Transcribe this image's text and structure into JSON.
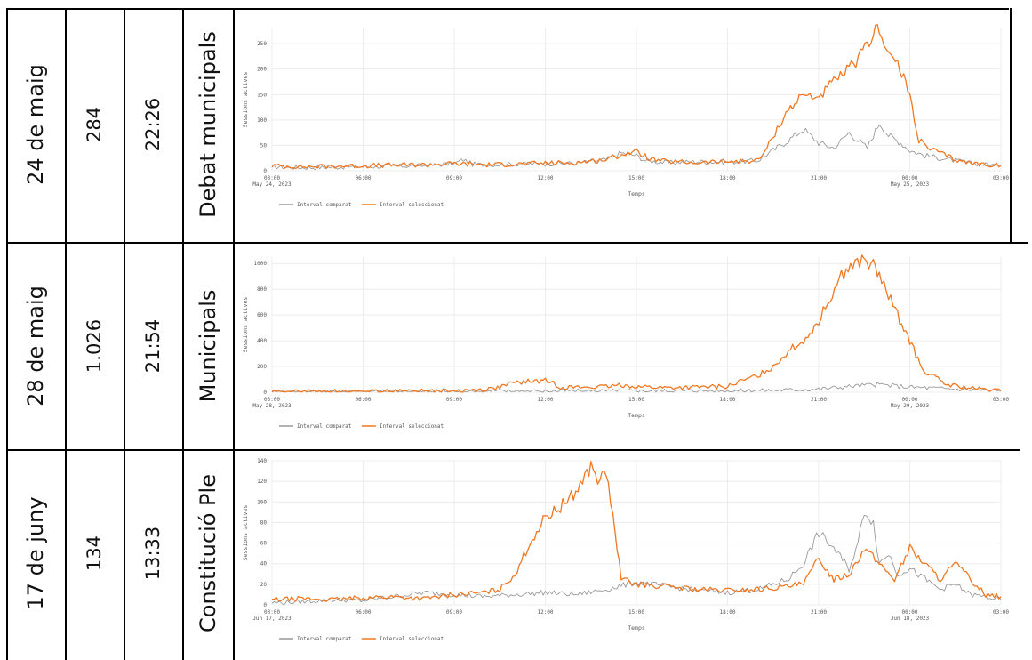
{
  "table": {
    "rows": [
      {
        "date": "24 de maig",
        "peak": "284",
        "time": "22:26",
        "event": "Debat municipals"
      },
      {
        "date": "28 de maig",
        "peak": "1.026",
        "time": "21:54",
        "event": "Municipals"
      },
      {
        "date": "17 de juny",
        "peak": "134",
        "time": "13:33",
        "event": "Constitució Ple"
      }
    ]
  },
  "colors": {
    "compared": "#999999",
    "selected": "#f07822",
    "grid": "#ececec"
  },
  "chart_data": [
    {
      "type": "line",
      "xlabel": "Temps",
      "ylabel": "Sessions actives",
      "ylim": [
        0,
        280
      ],
      "yticks": [
        0,
        50,
        100,
        150,
        200,
        250
      ],
      "ytick_labels": [
        "0",
        "50",
        "100",
        "150",
        "200",
        "250"
      ],
      "x_range": [
        3,
        27
      ],
      "xticks": [
        3,
        6,
        9,
        12,
        15,
        18,
        21,
        24,
        27
      ],
      "xtick_labels": [
        "03:00",
        "06:00",
        "09:00",
        "12:00",
        "15:00",
        "18:00",
        "21:00",
        "00:00",
        "03:00"
      ],
      "xtick_sublabels": {
        "0": "May 24, 2023",
        "7": "May 25, 2023"
      },
      "legend": "bottom-left",
      "series": [
        {
          "name": "Interval comparat",
          "color": "#999999",
          "x": [
            3,
            4,
            5,
            6,
            7,
            8,
            9,
            9.3,
            9.6,
            10,
            11,
            12,
            13,
            14,
            14.5,
            15,
            15.3,
            16,
            17,
            18,
            19,
            19.5,
            20,
            20.5,
            21,
            21.5,
            22,
            22.3,
            22.6,
            23,
            23.3,
            23.7,
            24,
            24.5,
            25,
            26,
            27
          ],
          "y": [
            8,
            6,
            7,
            8,
            9,
            10,
            14,
            22,
            13,
            12,
            13,
            14,
            15,
            22,
            35,
            30,
            20,
            16,
            18,
            17,
            20,
            40,
            60,
            82,
            55,
            45,
            75,
            60,
            45,
            95,
            70,
            55,
            40,
            30,
            25,
            15,
            10
          ]
        },
        {
          "name": "Interval seleccionat",
          "color": "#f07822",
          "x": [
            3,
            4,
            5,
            6,
            7,
            8,
            9,
            10,
            11,
            12,
            13,
            14,
            14.5,
            15,
            15.5,
            16,
            17,
            18,
            19,
            19.3,
            19.7,
            20,
            20.5,
            21,
            21.5,
            22,
            22.3,
            22.6,
            22.8,
            23,
            23.3,
            23.6,
            24,
            24.3,
            24.6,
            25,
            25.5,
            26,
            27
          ],
          "y": [
            10,
            8,
            9,
            10,
            11,
            12,
            14,
            12,
            13,
            15,
            16,
            22,
            32,
            38,
            22,
            18,
            16,
            18,
            20,
            45,
            90,
            120,
            150,
            145,
            175,
            200,
            220,
            245,
            270,
            284,
            230,
            210,
            150,
            60,
            45,
            35,
            22,
            15,
            10
          ]
        }
      ]
    },
    {
      "type": "line",
      "xlabel": "Temps",
      "ylabel": "Sessions actives",
      "ylim": [
        0,
        1050
      ],
      "yticks": [
        0,
        200,
        400,
        600,
        800,
        1000
      ],
      "ytick_labels": [
        "0",
        "200",
        "400",
        "600",
        "800",
        "1000"
      ],
      "x_range": [
        3,
        27
      ],
      "xticks": [
        3,
        6,
        9,
        12,
        15,
        18,
        21,
        24,
        27
      ],
      "xtick_labels": [
        "03:00",
        "06:00",
        "09:00",
        "12:00",
        "15:00",
        "18:00",
        "21:00",
        "00:00",
        "03:00"
      ],
      "xtick_sublabels": {
        "0": "May 28, 2023",
        "7": "May 29, 2023"
      },
      "legend": "bottom-left",
      "series": [
        {
          "name": "Interval comparat",
          "color": "#999999",
          "x": [
            3,
            6,
            9,
            12,
            15,
            18,
            19,
            20,
            21,
            21.5,
            22,
            22.5,
            23,
            23.5,
            24,
            25,
            26,
            27
          ],
          "y": [
            5,
            6,
            8,
            10,
            10,
            12,
            14,
            18,
            25,
            35,
            45,
            55,
            60,
            50,
            40,
            30,
            20,
            10
          ]
        },
        {
          "name": "Interval seleccionat",
          "color": "#f07822",
          "x": [
            3,
            6,
            7,
            8,
            9,
            10,
            10.5,
            11,
            11.5,
            12,
            12.2,
            12.5,
            13,
            14,
            14.5,
            15,
            16,
            17,
            18,
            18.5,
            19,
            19.5,
            20,
            20.5,
            21,
            21.3,
            21.6,
            21.9,
            22.2,
            22.5,
            22.8,
            23,
            23.3,
            23.6,
            24,
            24.4,
            24.8,
            25.2,
            26,
            27
          ],
          "y": [
            5,
            6,
            8,
            10,
            12,
            20,
            40,
            75,
            85,
            90,
            80,
            40,
            38,
            42,
            55,
            45,
            35,
            38,
            45,
            90,
            130,
            200,
            320,
            400,
            550,
            700,
            850,
            950,
            1000,
            1026,
            980,
            900,
            750,
            600,
            400,
            180,
            120,
            60,
            30,
            10
          ]
        }
      ]
    },
    {
      "type": "line",
      "xlabel": "Temps",
      "ylabel": "Sessions actives",
      "ylim": [
        0,
        140
      ],
      "yticks": [
        0,
        20,
        40,
        60,
        80,
        100,
        120,
        140
      ],
      "ytick_labels": [
        "0",
        "20",
        "40",
        "60",
        "80",
        "100",
        "120",
        "140"
      ],
      "x_range": [
        3,
        27
      ],
      "xticks": [
        3,
        6,
        9,
        12,
        15,
        18,
        21,
        24,
        27
      ],
      "xtick_labels": [
        "03:00",
        "06:00",
        "09:00",
        "12:00",
        "15:00",
        "18:00",
        "21:00",
        "00:00",
        "03:00"
      ],
      "xtick_sublabels": {
        "0": "Jun 17, 2023",
        "7": "Jun 18, 2023"
      },
      "legend": "bottom-left",
      "series": [
        {
          "name": "Interval comparat",
          "color": "#999999",
          "x": [
            3,
            4,
            5,
            6,
            7,
            8,
            9,
            10,
            11,
            12,
            13,
            14,
            15,
            16,
            17,
            18,
            19,
            20,
            20.5,
            21,
            21.5,
            22,
            22.3,
            22.5,
            22.8,
            23,
            23.3,
            23.6,
            24,
            24.5,
            25,
            25.5,
            26,
            27
          ],
          "y": [
            2,
            3,
            5,
            4,
            8,
            12,
            10,
            8,
            10,
            12,
            10,
            15,
            22,
            18,
            14,
            12,
            15,
            25,
            40,
            70,
            55,
            35,
            60,
            92,
            80,
            40,
            50,
            30,
            35,
            25,
            15,
            20,
            10,
            5
          ]
        },
        {
          "name": "Interval seleccionat",
          "color": "#f07822",
          "x": [
            3,
            4,
            5,
            6,
            7,
            8,
            9,
            10,
            10.5,
            11,
            11.5,
            12,
            12.5,
            13,
            13.3,
            13.5,
            13.8,
            14,
            14.3,
            14.5,
            15,
            16,
            17,
            18,
            19,
            20,
            20.5,
            21,
            21.5,
            22,
            22.5,
            23,
            23.5,
            24,
            24.5,
            25,
            25.5,
            26,
            26.5,
            27
          ],
          "y": [
            5,
            6,
            5,
            7,
            8,
            6,
            10,
            12,
            15,
            30,
            60,
            85,
            95,
            110,
            125,
            134,
            120,
            130,
            70,
            25,
            20,
            18,
            15,
            14,
            15,
            18,
            20,
            45,
            25,
            30,
            55,
            40,
            25,
            55,
            40,
            25,
            40,
            25,
            10,
            8
          ]
        }
      ]
    }
  ]
}
